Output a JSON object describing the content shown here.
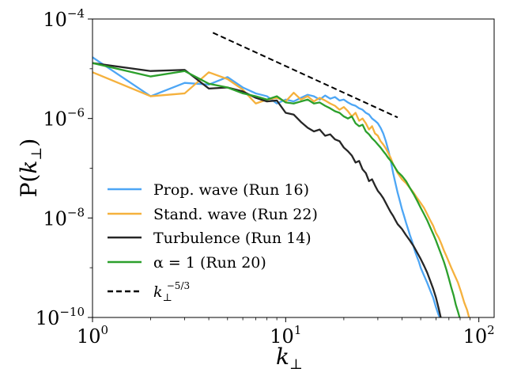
{
  "chart_data": {
    "type": "line",
    "title": "",
    "x_scale": "log",
    "y_scale": "log",
    "xlim": [
      1,
      120
    ],
    "ylim": [
      1e-10,
      0.0001
    ],
    "xlabel": {
      "base": "k",
      "sub": "⊥"
    },
    "ylabel": {
      "prefix": "P(",
      "base": "k",
      "sub": "⊥",
      "suffix": ")"
    },
    "x_ticks": [
      {
        "value": 1,
        "base": "10",
        "exp": "0"
      },
      {
        "value": 10,
        "base": "10",
        "exp": "1"
      },
      {
        "value": 100,
        "base": "10",
        "exp": "2"
      }
    ],
    "y_ticks": [
      {
        "value": 0.0001,
        "base": "10",
        "exp": "−4"
      },
      {
        "value": 1e-06,
        "base": "10",
        "exp": "−6"
      },
      {
        "value": 1e-08,
        "base": "10",
        "exp": "−8"
      },
      {
        "value": 1e-10,
        "base": "10",
        "exp": "−10"
      }
    ],
    "legend_position": "lower-left",
    "series": [
      {
        "name": "Prop. wave (Run 16)",
        "color": "#4da6f5",
        "dash": "solid",
        "points": [
          [
            1,
            1.7e-05
          ],
          [
            2,
            2.8e-06
          ],
          [
            3,
            5.2e-06
          ],
          [
            4,
            4.8e-06
          ],
          [
            5,
            6.8e-06
          ],
          [
            6,
            4.2e-06
          ],
          [
            7,
            3.2e-06
          ],
          [
            8,
            2.8e-06
          ],
          [
            9,
            2e-06
          ],
          [
            10,
            2.4e-06
          ],
          [
            11,
            2.2e-06
          ],
          [
            12,
            2.6e-06
          ],
          [
            13,
            3e-06
          ],
          [
            14,
            2.8e-06
          ],
          [
            15,
            2.4e-06
          ],
          [
            16,
            2.9e-06
          ],
          [
            17,
            2.5e-06
          ],
          [
            18,
            2.7e-06
          ],
          [
            19,
            2.3e-06
          ],
          [
            20,
            2.4e-06
          ],
          [
            21,
            2.1e-06
          ],
          [
            22,
            1.9e-06
          ],
          [
            23,
            1.8e-06
          ],
          [
            24,
            1.6e-06
          ],
          [
            25,
            1.5e-06
          ],
          [
            26,
            1.3e-06
          ],
          [
            27,
            1.2e-06
          ],
          [
            28,
            1e-06
          ],
          [
            29,
            9e-07
          ],
          [
            30,
            8e-07
          ],
          [
            31,
            6.5e-07
          ],
          [
            32,
            5e-07
          ],
          [
            33,
            3.5e-07
          ],
          [
            34,
            2.3e-07
          ],
          [
            35,
            1.4e-07
          ],
          [
            36,
            8e-08
          ],
          [
            37,
            5e-08
          ],
          [
            38,
            3.2e-08
          ],
          [
            39,
            2.2e-08
          ],
          [
            40,
            1.5e-08
          ],
          [
            41,
            1.1e-08
          ],
          [
            42,
            8e-09
          ],
          [
            43,
            6e-09
          ],
          [
            44,
            4.5e-09
          ],
          [
            45,
            3.5e-09
          ],
          [
            46,
            2.6e-09
          ],
          [
            47,
            2e-09
          ],
          [
            48,
            1.6e-09
          ],
          [
            49,
            1.3e-09
          ],
          [
            50,
            1e-09
          ],
          [
            52,
            7e-10
          ],
          [
            54,
            5e-10
          ],
          [
            56,
            3.5e-10
          ],
          [
            58,
            2.5e-10
          ],
          [
            60,
            1.6e-10
          ],
          [
            62,
            1.1e-10
          ],
          [
            63,
            1e-10
          ]
        ]
      },
      {
        "name": "Stand. wave (Run 22)",
        "color": "#f5b13d",
        "dash": "solid",
        "points": [
          [
            1,
            8.5e-06
          ],
          [
            2,
            2.8e-06
          ],
          [
            3,
            3.2e-06
          ],
          [
            4,
            8.5e-06
          ],
          [
            5,
            6.2e-06
          ],
          [
            6,
            3.8e-06
          ],
          [
            7,
            2e-06
          ],
          [
            8,
            2.4e-06
          ],
          [
            9,
            2.6e-06
          ],
          [
            10,
            2.2e-06
          ],
          [
            11,
            3.3e-06
          ],
          [
            12,
            2.4e-06
          ],
          [
            13,
            2.8e-06
          ],
          [
            14,
            2.2e-06
          ],
          [
            15,
            2.6e-06
          ],
          [
            16,
            2.3e-06
          ],
          [
            17,
            2e-06
          ],
          [
            18,
            1.8e-06
          ],
          [
            19,
            1.5e-06
          ],
          [
            20,
            1.7e-06
          ],
          [
            21,
            1.4e-06
          ],
          [
            22,
            1.1e-06
          ],
          [
            23,
            1.3e-06
          ],
          [
            24,
            9e-07
          ],
          [
            25,
            1e-06
          ],
          [
            26,
            8e-07
          ],
          [
            27,
            6e-07
          ],
          [
            28,
            7e-07
          ],
          [
            29,
            5e-07
          ],
          [
            30,
            4.5e-07
          ],
          [
            31,
            3.5e-07
          ],
          [
            32,
            3e-07
          ],
          [
            33,
            2.5e-07
          ],
          [
            34,
            2e-07
          ],
          [
            35,
            1.6e-07
          ],
          [
            36,
            1.2e-07
          ],
          [
            37,
            1e-07
          ],
          [
            38,
            8e-08
          ],
          [
            40,
            6e-08
          ],
          [
            42,
            5e-08
          ],
          [
            44,
            4e-08
          ],
          [
            46,
            3.2e-08
          ],
          [
            48,
            2.5e-08
          ],
          [
            50,
            2e-08
          ],
          [
            52,
            1.6e-08
          ],
          [
            54,
            1.2e-08
          ],
          [
            56,
            9e-09
          ],
          [
            58,
            7e-09
          ],
          [
            60,
            5e-09
          ],
          [
            62,
            4e-09
          ],
          [
            64,
            3e-09
          ],
          [
            66,
            2.2e-09
          ],
          [
            68,
            1.7e-09
          ],
          [
            70,
            1.3e-09
          ],
          [
            72,
            1e-09
          ],
          [
            75,
            7e-10
          ],
          [
            78,
            5e-10
          ],
          [
            81,
            3.2e-10
          ],
          [
            84,
            2e-10
          ],
          [
            87,
            1.4e-10
          ],
          [
            89,
            1e-10
          ]
        ]
      },
      {
        "name": "Turbulence (Run 14)",
        "color": "#262626",
        "dash": "solid",
        "points": [
          [
            1,
            1.3e-05
          ],
          [
            2,
            9e-06
          ],
          [
            3,
            9.5e-06
          ],
          [
            4,
            4e-06
          ],
          [
            5,
            4.2e-06
          ],
          [
            6,
            3.5e-06
          ],
          [
            7,
            2.6e-06
          ],
          [
            8,
            2.2e-06
          ],
          [
            9,
            2.3e-06
          ],
          [
            10,
            1.3e-06
          ],
          [
            11,
            1.2e-06
          ],
          [
            12,
            8.5e-07
          ],
          [
            13,
            6.5e-07
          ],
          [
            14,
            5.5e-07
          ],
          [
            15,
            6e-07
          ],
          [
            16,
            4.5e-07
          ],
          [
            17,
            4.8e-07
          ],
          [
            18,
            3.8e-07
          ],
          [
            19,
            3.5e-07
          ],
          [
            20,
            2.6e-07
          ],
          [
            21,
            2.2e-07
          ],
          [
            22,
            1.8e-07
          ],
          [
            23,
            1.3e-07
          ],
          [
            24,
            1.4e-07
          ],
          [
            25,
            9.5e-08
          ],
          [
            26,
            8e-08
          ],
          [
            27,
            5.5e-08
          ],
          [
            28,
            6e-08
          ],
          [
            29,
            4.5e-08
          ],
          [
            30,
            3.5e-08
          ],
          [
            31,
            3e-08
          ],
          [
            32,
            2.5e-08
          ],
          [
            33,
            2e-08
          ],
          [
            34,
            1.6e-08
          ],
          [
            35,
            1.3e-08
          ],
          [
            36,
            1.1e-08
          ],
          [
            37,
            9e-09
          ],
          [
            38,
            7.5e-09
          ],
          [
            40,
            6e-09
          ],
          [
            42,
            4.5e-09
          ],
          [
            44,
            3.5e-09
          ],
          [
            46,
            2.7e-09
          ],
          [
            48,
            2e-09
          ],
          [
            50,
            1.5e-09
          ],
          [
            52,
            1.1e-09
          ],
          [
            54,
            8e-10
          ],
          [
            56,
            5.5e-10
          ],
          [
            58,
            3.8e-10
          ],
          [
            60,
            2.5e-10
          ],
          [
            62,
            1.5e-10
          ],
          [
            63.5,
            1e-10
          ]
        ]
      },
      {
        "name": "α = 1 (Run 20)",
        "color": "#2ca02c",
        "dash": "solid",
        "points": [
          [
            1,
            1.3e-05
          ],
          [
            2,
            7e-06
          ],
          [
            3,
            9e-06
          ],
          [
            4,
            5e-06
          ],
          [
            5,
            4.2e-06
          ],
          [
            6,
            3.2e-06
          ],
          [
            7,
            2.8e-06
          ],
          [
            8,
            2.4e-06
          ],
          [
            9,
            2.8e-06
          ],
          [
            10,
            2.1e-06
          ],
          [
            11,
            2e-06
          ],
          [
            12,
            2.2e-06
          ],
          [
            13,
            2.4e-06
          ],
          [
            14,
            2e-06
          ],
          [
            15,
            2.1e-06
          ],
          [
            16,
            1.8e-06
          ],
          [
            17,
            1.6e-06
          ],
          [
            18,
            1.4e-06
          ],
          [
            19,
            1.3e-06
          ],
          [
            20,
            1.1e-06
          ],
          [
            21,
            1e-06
          ],
          [
            22,
            1.1e-06
          ],
          [
            23,
            8e-07
          ],
          [
            24,
            7e-07
          ],
          [
            25,
            7.5e-07
          ],
          [
            26,
            5.5e-07
          ],
          [
            27,
            4.8e-07
          ],
          [
            28,
            4e-07
          ],
          [
            29,
            3.5e-07
          ],
          [
            30,
            3e-07
          ],
          [
            31,
            2.6e-07
          ],
          [
            32,
            2.2e-07
          ],
          [
            33,
            1.9e-07
          ],
          [
            34,
            1.6e-07
          ],
          [
            35,
            1.4e-07
          ],
          [
            36,
            1.2e-07
          ],
          [
            37,
            1e-07
          ],
          [
            38,
            8.5e-08
          ],
          [
            40,
            7e-08
          ],
          [
            42,
            5.5e-08
          ],
          [
            44,
            4e-08
          ],
          [
            46,
            3e-08
          ],
          [
            48,
            2.2e-08
          ],
          [
            50,
            1.6e-08
          ],
          [
            52,
            1.2e-08
          ],
          [
            54,
            9e-09
          ],
          [
            56,
            6.5e-09
          ],
          [
            58,
            4.8e-09
          ],
          [
            60,
            3.5e-09
          ],
          [
            62,
            2.5e-09
          ],
          [
            64,
            1.8e-09
          ],
          [
            66,
            1.3e-09
          ],
          [
            68,
            9e-10
          ],
          [
            70,
            6e-10
          ],
          [
            72,
            4e-10
          ],
          [
            74,
            2.8e-10
          ],
          [
            76,
            1.8e-10
          ],
          [
            78,
            1.3e-10
          ],
          [
            79.5,
            1e-10
          ]
        ]
      },
      {
        "name": "k_⊥^{-5/3}",
        "legend_base": "k",
        "legend_sub": "⊥",
        "legend_sup": "−5/3",
        "color": "#000000",
        "dash": "dashed",
        "points": [
          [
            4.2,
            5.3e-05
          ],
          [
            38,
            1.05e-06
          ]
        ]
      }
    ]
  }
}
